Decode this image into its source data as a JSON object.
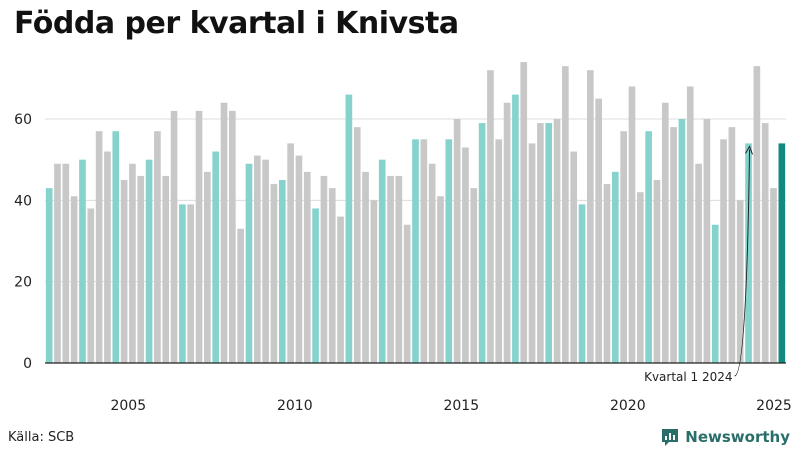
{
  "title": "Födda per kvartal i Knivsta",
  "source": "Källa: SCB",
  "logo_text": "Newsworthy",
  "colors": {
    "bar_default": "#c8c8c8",
    "bar_q1": "#86d3ce",
    "bar_latest": "#138a80",
    "gridline": "#dcdcdc",
    "axis": "#222222",
    "logo": "#2a6e6a"
  },
  "chart_data": {
    "type": "bar",
    "start_year": 2003,
    "start_quarter": 1,
    "values": [
      43,
      49,
      49,
      41,
      50,
      38,
      57,
      52,
      57,
      45,
      49,
      46,
      50,
      57,
      46,
      62,
      39,
      39,
      62,
      47,
      52,
      64,
      62,
      33,
      49,
      51,
      50,
      44,
      45,
      54,
      51,
      47,
      38,
      46,
      43,
      36,
      66,
      58,
      47,
      40,
      50,
      46,
      46,
      34,
      55,
      55,
      49,
      41,
      55,
      60,
      53,
      43,
      59,
      72,
      55,
      64,
      66,
      74,
      54,
      59,
      59,
      60,
      73,
      52,
      39,
      72,
      65,
      44,
      47,
      57,
      68,
      42,
      57,
      45,
      64,
      58,
      60,
      68,
      49,
      60,
      34,
      55,
      58,
      40,
      54,
      73,
      59,
      43,
      54
    ],
    "ylim": [
      0,
      75
    ],
    "yticks": [
      0,
      20,
      40,
      60
    ],
    "xticks": [
      "2005",
      "2010",
      "2015",
      "2020",
      "2025"
    ],
    "grid": true,
    "annotation": {
      "text": "Kvartal 1 2024",
      "target_index": 84
    }
  }
}
